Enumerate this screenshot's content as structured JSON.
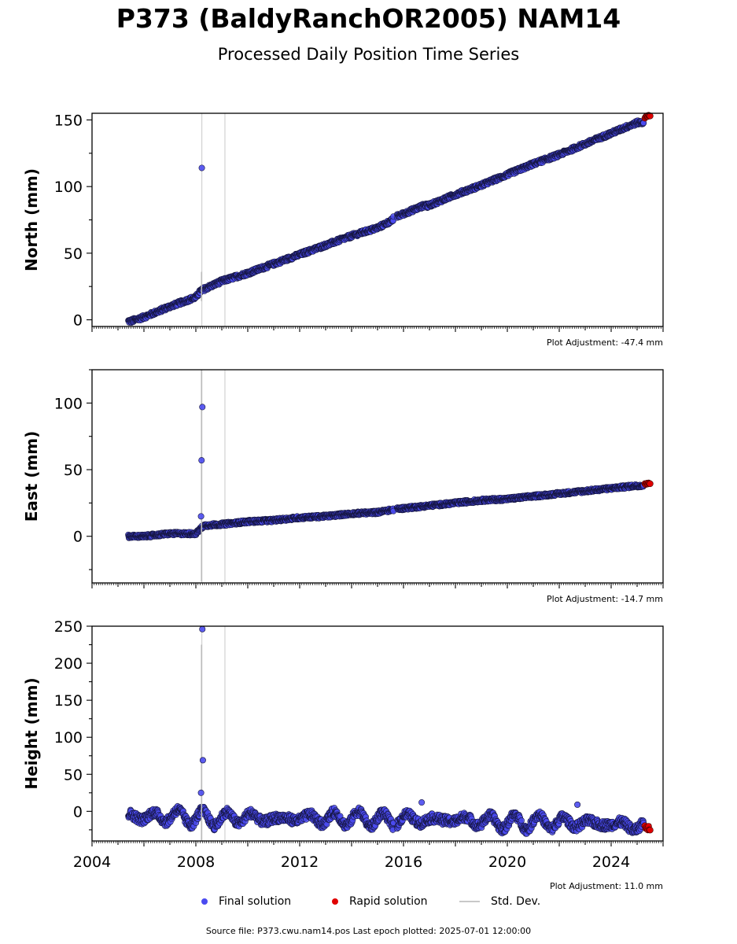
{
  "header": {
    "title": "P373 (BaldyRanchOR2005) NAM14",
    "subtitle": "Processed Daily Position Time Series"
  },
  "legend": {
    "final_label": "Final solution",
    "rapid_label": "Rapid solution",
    "std_label": "Std. Dev.",
    "final_color": "#4b4bf0",
    "rapid_color": "#e00000",
    "std_color": "#c8c8c8"
  },
  "footer": {
    "text": "Source file: P373.cwu.nam14.pos  Last epoch plotted: 2025-07-01 12:00:00"
  },
  "chart_data": [
    {
      "type": "scatter",
      "ylabel": "North (mm)",
      "adjustment": "Plot Adjustment: -47.4 mm",
      "xlim": [
        2004,
        2026
      ],
      "ylim": [
        -5,
        155
      ],
      "yticks": [
        0,
        50,
        100,
        150
      ],
      "x_ticks_labeled": false,
      "vlines": [
        2008.23,
        2009.12
      ],
      "outliers": [
        {
          "x": 2008.23,
          "y": 114
        }
      ],
      "series": [
        {
          "name": "Final solution",
          "x": [
            2005.5,
            2006,
            2007,
            2008,
            2008.2,
            2009,
            2010,
            2011,
            2012,
            2013,
            2014,
            2015,
            2015.6,
            2016,
            2017,
            2018,
            2019,
            2020,
            2021,
            2022,
            2023,
            2024,
            2025
          ],
          "y": [
            -1,
            2,
            10,
            17,
            22,
            29,
            35,
            42,
            49,
            56,
            63,
            69,
            75,
            78,
            86,
            94,
            101,
            109,
            117,
            124,
            132,
            140,
            148
          ]
        },
        {
          "name": "Rapid solution",
          "x": [
            2025.3,
            2025.5
          ],
          "y": [
            152,
            153
          ]
        }
      ]
    },
    {
      "type": "scatter",
      "ylabel": "East (mm)",
      "adjustment": "Plot Adjustment: -14.7 mm",
      "xlim": [
        2004,
        2026
      ],
      "ylim": [
        -35,
        125
      ],
      "yticks": [
        0,
        50,
        100
      ],
      "x_ticks_labeled": false,
      "vlines": [
        2008.23,
        2009.12
      ],
      "outliers": [
        {
          "x": 2008.25,
          "y": 97
        },
        {
          "x": 2008.22,
          "y": 57
        },
        {
          "x": 2008.2,
          "y": 15
        }
      ],
      "series": [
        {
          "name": "Final solution",
          "x": [
            2005.5,
            2006,
            2007,
            2008,
            2008.3,
            2009,
            2010,
            2011,
            2012,
            2013,
            2014,
            2015,
            2015.6,
            2016,
            2017,
            2018,
            2019,
            2020,
            2021,
            2022,
            2023,
            2024,
            2025
          ],
          "y": [
            0,
            0,
            2,
            2,
            8,
            9,
            11,
            12,
            14,
            15,
            17,
            18,
            20,
            21,
            23,
            25,
            27,
            28,
            30,
            32,
            34,
            36,
            38
          ]
        },
        {
          "name": "Rapid solution",
          "x": [
            2025.3,
            2025.5
          ],
          "y": [
            39,
            40
          ]
        }
      ]
    },
    {
      "type": "scatter",
      "ylabel": "Height (mm)",
      "adjustment": "Plot Adjustment: 11.0 mm",
      "xlim": [
        2004,
        2026
      ],
      "ylim": [
        -40,
        250
      ],
      "yticks": [
        0,
        50,
        100,
        150,
        200,
        250
      ],
      "xticks": [
        2004,
        2008,
        2012,
        2016,
        2020,
        2024
      ],
      "x_ticks_labeled": true,
      "vlines": [
        2008.23,
        2009.12
      ],
      "outliers": [
        {
          "x": 2008.25,
          "y": 246
        },
        {
          "x": 2008.27,
          "y": 69
        },
        {
          "x": 2008.2,
          "y": 25
        },
        {
          "x": 2016.7,
          "y": 12
        },
        {
          "x": 2022.7,
          "y": 9
        }
      ],
      "series": [
        {
          "name": "Final solution",
          "x": [
            2005.5,
            2006,
            2007,
            2008,
            2009,
            2010,
            2011,
            2012,
            2013,
            2014,
            2015,
            2015.6,
            2016,
            2017,
            2018,
            2019,
            2020,
            2021,
            2022,
            2023,
            2024,
            2025
          ],
          "y": [
            -5,
            -8,
            -6,
            -9,
            -10,
            -8,
            -11,
            -9,
            -10,
            -9,
            -11,
            -12,
            -10,
            -12,
            -11,
            -13,
            -15,
            -14,
            -15,
            -16,
            -17,
            -20
          ]
        },
        {
          "name": "Rapid solution",
          "x": [
            2025.3,
            2025.5
          ],
          "y": [
            -20,
            -24
          ]
        }
      ]
    }
  ]
}
